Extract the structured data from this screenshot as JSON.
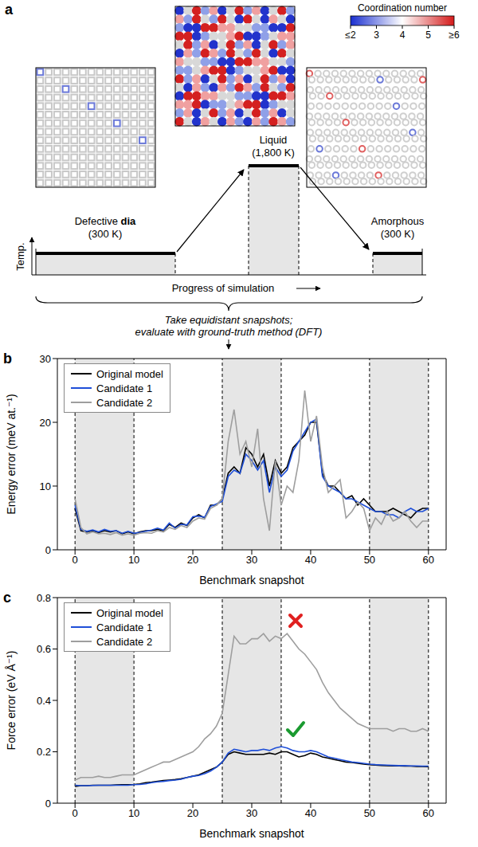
{
  "diagram": {
    "panel": "a",
    "colorbar": {
      "title": "Coordination number",
      "range": [
        2,
        6
      ],
      "ticks": [
        {
          "value": 2,
          "label": "≤2"
        },
        3,
        4,
        5,
        {
          "value": 6,
          "label": "≥6"
        }
      ]
    },
    "stages": [
      {
        "name": "Defective",
        "name_bold": "dia",
        "temperature": "(300 K)"
      },
      {
        "name": "Liquid",
        "temperature": "(1,800 K)"
      },
      {
        "name": "Amorphous",
        "temperature": "(300 K)"
      }
    ],
    "y_axis_label": "Temp.",
    "x_axis_label": "Progress of simulation",
    "note": [
      "Take equidistant snapshots;",
      "evaluate with ground-truth method (DFT)"
    ]
  },
  "chart_data": [
    {
      "type": "line",
      "title": "b",
      "x": [
        0,
        1,
        2,
        3,
        4,
        5,
        6,
        7,
        8,
        9,
        10,
        11,
        12,
        13,
        14,
        15,
        16,
        17,
        18,
        19,
        20,
        21,
        22,
        23,
        24,
        25,
        26,
        27,
        28,
        29,
        30,
        31,
        32,
        33,
        34,
        35,
        36,
        37,
        38,
        39,
        40,
        41,
        42,
        43,
        44,
        45,
        46,
        47,
        48,
        49,
        50,
        51,
        52,
        53,
        54,
        55,
        56,
        57,
        58,
        59,
        60
      ],
      "xlim": [
        -3,
        63
      ],
      "xticks": [
        0,
        10,
        20,
        30,
        40,
        50,
        60
      ],
      "ylim": [
        0,
        30
      ],
      "yticks": [
        0,
        10,
        20,
        30
      ],
      "x_label": "Benchmark snapshot",
      "y_label": "Energy error (meV at.⁻¹)",
      "legend": "upper left",
      "shaded_ranges": [
        [
          0,
          10
        ],
        [
          25,
          35
        ],
        [
          50,
          60
        ]
      ],
      "vlines": [
        0,
        10,
        25,
        35,
        50,
        60
      ],
      "series": [
        {
          "name": "Original model",
          "color": "#000000",
          "values": [
            6.5,
            3.0,
            2.8,
            3.0,
            2.7,
            3.0,
            2.8,
            3.0,
            2.5,
            2.8,
            2.5,
            2.8,
            3.0,
            3.0,
            3.2,
            3.0,
            4.0,
            3.5,
            4.2,
            3.8,
            5.0,
            5.5,
            5.0,
            7.0,
            7.0,
            8.0,
            12.0,
            13.0,
            12.0,
            16.0,
            15.0,
            13.0,
            15.0,
            10.0,
            14.0,
            12.0,
            13.0,
            16.0,
            17.0,
            18.0,
            20.0,
            20.0,
            12.0,
            10.0,
            10.0,
            9.0,
            8.0,
            8.5,
            7.0,
            8.0,
            7.0,
            6.0,
            6.0,
            6.0,
            6.5,
            6.0,
            5.5,
            5.0,
            6.0,
            6.5,
            6.5
          ]
        },
        {
          "name": "Candidate 1",
          "color": "#1f4fd8",
          "values": [
            7.0,
            3.2,
            2.9,
            3.1,
            2.8,
            3.2,
            2.9,
            3.0,
            2.6,
            2.9,
            2.6,
            2.7,
            2.9,
            3.1,
            3.4,
            3.1,
            4.2,
            3.4,
            4.0,
            3.9,
            5.2,
            5.3,
            5.1,
            6.8,
            7.2,
            7.6,
            11.5,
            12.5,
            12.0,
            15.0,
            14.0,
            12.5,
            14.0,
            9.0,
            13.0,
            11.5,
            12.5,
            15.5,
            17.0,
            18.5,
            20.0,
            20.5,
            11.5,
            10.0,
            9.5,
            9.0,
            8.0,
            8.0,
            7.5,
            7.0,
            6.5,
            6.0,
            6.0,
            5.5,
            5.5,
            5.0,
            6.0,
            6.5,
            6.0,
            6.0,
            6.5
          ]
        },
        {
          "name": "Candidate 2",
          "color": "#9e9e9e",
          "values": [
            8.0,
            3.5,
            2.5,
            2.8,
            2.5,
            2.6,
            2.4,
            2.7,
            2.3,
            2.5,
            2.3,
            2.6,
            2.7,
            2.6,
            3.0,
            2.8,
            3.5,
            3.2,
            3.8,
            3.5,
            4.5,
            5.0,
            4.8,
            6.5,
            7.0,
            8.0,
            17.0,
            22.0,
            15.0,
            17.0,
            13.0,
            19.0,
            8.0,
            3.0,
            14.0,
            7.0,
            10.0,
            9.0,
            14.0,
            25.0,
            17.0,
            21.0,
            13.0,
            9.0,
            10.0,
            11.0,
            5.0,
            6.0,
            7.5,
            6.5,
            3.0,
            5.0,
            4.0,
            6.0,
            4.5,
            5.0,
            6.0,
            4.5,
            3.5,
            4.5,
            4.5
          ]
        }
      ]
    },
    {
      "type": "line",
      "title": "c",
      "x": [
        0,
        1,
        2,
        3,
        4,
        5,
        6,
        7,
        8,
        9,
        10,
        11,
        12,
        13,
        14,
        15,
        16,
        17,
        18,
        19,
        20,
        21,
        22,
        23,
        24,
        25,
        26,
        27,
        28,
        29,
        30,
        31,
        32,
        33,
        34,
        35,
        36,
        37,
        38,
        39,
        40,
        41,
        42,
        43,
        44,
        45,
        46,
        47,
        48,
        49,
        50,
        51,
        52,
        53,
        54,
        55,
        56,
        57,
        58,
        59,
        60
      ],
      "xlim": [
        -3,
        63
      ],
      "xticks": [
        0,
        10,
        20,
        30,
        40,
        50,
        60
      ],
      "ylim": [
        0,
        0.8
      ],
      "yticks": [
        0,
        0.2,
        0.4,
        0.6,
        0.8
      ],
      "x_label": "Benchmark snapshot",
      "y_label": "Force error (eV Å⁻¹)",
      "legend": "upper left",
      "shaded_ranges": [
        [
          0,
          10
        ],
        [
          25,
          35
        ],
        [
          50,
          60
        ]
      ],
      "vlines": [
        0,
        10,
        25,
        35,
        50,
        60
      ],
      "series": [
        {
          "name": "Original model",
          "color": "#000000",
          "values": [
            0.065,
            0.068,
            0.068,
            0.07,
            0.07,
            0.07,
            0.07,
            0.071,
            0.072,
            0.072,
            0.073,
            0.075,
            0.08,
            0.082,
            0.085,
            0.088,
            0.09,
            0.092,
            0.095,
            0.1,
            0.105,
            0.11,
            0.12,
            0.13,
            0.14,
            0.16,
            0.19,
            0.2,
            0.195,
            0.19,
            0.19,
            0.19,
            0.19,
            0.195,
            0.19,
            0.2,
            0.2,
            0.19,
            0.18,
            0.185,
            0.195,
            0.19,
            0.18,
            0.175,
            0.17,
            0.165,
            0.16,
            0.158,
            0.155,
            0.152,
            0.15,
            0.148,
            0.147,
            0.146,
            0.145,
            0.145,
            0.144,
            0.144,
            0.143,
            0.143,
            0.142
          ]
        },
        {
          "name": "Candidate 1",
          "color": "#1f4fd8",
          "values": [
            0.07,
            0.068,
            0.068,
            0.069,
            0.07,
            0.07,
            0.07,
            0.07,
            0.07,
            0.07,
            0.072,
            0.073,
            0.075,
            0.08,
            0.083,
            0.085,
            0.088,
            0.09,
            0.093,
            0.1,
            0.105,
            0.108,
            0.115,
            0.125,
            0.14,
            0.16,
            0.195,
            0.21,
            0.205,
            0.2,
            0.205,
            0.205,
            0.21,
            0.205,
            0.215,
            0.22,
            0.215,
            0.205,
            0.2,
            0.2,
            0.205,
            0.2,
            0.19,
            0.18,
            0.175,
            0.17,
            0.165,
            0.16,
            0.158,
            0.155,
            0.152,
            0.15,
            0.149,
            0.148,
            0.147,
            0.146,
            0.146,
            0.145,
            0.145,
            0.144,
            0.144
          ]
        },
        {
          "name": "Candidate 2",
          "color": "#9e9e9e",
          "values": [
            0.09,
            0.1,
            0.1,
            0.1,
            0.105,
            0.1,
            0.1,
            0.105,
            0.11,
            0.11,
            0.11,
            0.12,
            0.13,
            0.14,
            0.15,
            0.16,
            0.16,
            0.17,
            0.18,
            0.19,
            0.2,
            0.22,
            0.25,
            0.27,
            0.3,
            0.35,
            0.5,
            0.65,
            0.62,
            0.62,
            0.64,
            0.64,
            0.66,
            0.63,
            0.65,
            0.64,
            0.66,
            0.63,
            0.6,
            0.58,
            0.55,
            0.52,
            0.47,
            0.43,
            0.4,
            0.37,
            0.35,
            0.33,
            0.31,
            0.3,
            0.29,
            0.29,
            0.29,
            0.29,
            0.28,
            0.29,
            0.29,
            0.28,
            0.28,
            0.29,
            0.28
          ]
        }
      ]
    }
  ]
}
